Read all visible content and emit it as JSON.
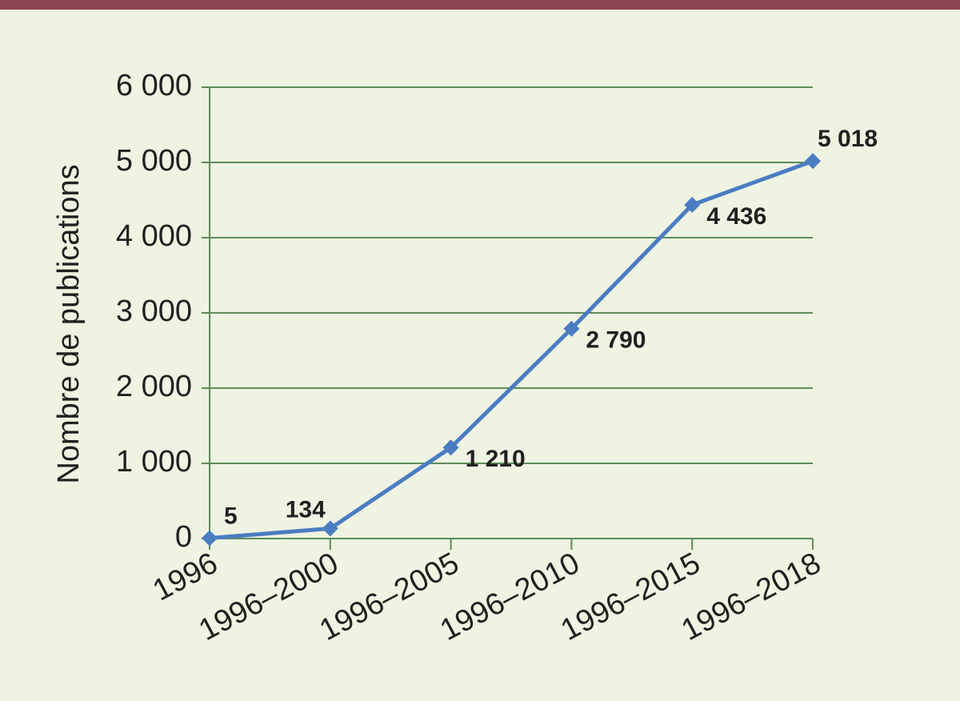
{
  "chart_data": {
    "type": "line",
    "y_label": "Nombre de publications",
    "categories": [
      "1996",
      "1996–2000",
      "1996–2005",
      "1996–2010",
      "1996–2015",
      "1996–2018"
    ],
    "series": [
      {
        "color": "#4a7cc2",
        "values": [
          5,
          134,
          1210,
          2790,
          4436,
          5018
        ],
        "value_labels": [
          "5",
          "134",
          "1 210",
          "2 790",
          "4 436",
          "5 018"
        ]
      }
    ],
    "ylim": [
      0,
      6000
    ],
    "yticks": [
      0,
      {
        "value": 1000,
        "label": "1 000"
      },
      {
        "value": 2000,
        "label": "2 000"
      },
      {
        "value": 3000,
        "label": "3 000"
      },
      {
        "value": 4000,
        "label": "4 000"
      },
      {
        "value": 5000,
        "label": "5 000"
      },
      {
        "value": 6000,
        "label": "6 000"
      }
    ],
    "grid": true
  }
}
